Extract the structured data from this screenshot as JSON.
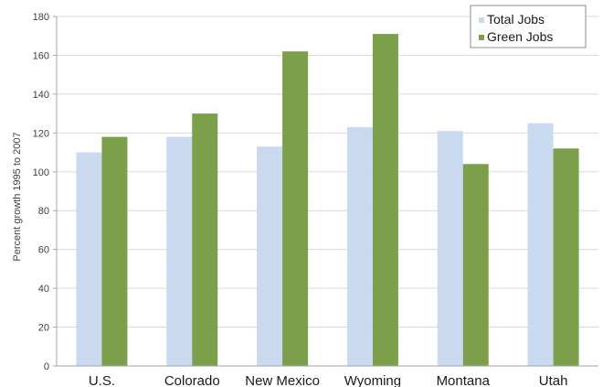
{
  "chart_data": {
    "type": "bar",
    "ylabel": "Percent growth 1995 to 2007",
    "ylim": [
      0,
      180
    ],
    "yticks": [
      0,
      20,
      40,
      60,
      80,
      100,
      120,
      140,
      160,
      180
    ],
    "grid": true,
    "legend_position": "top-right",
    "categories": [
      "U.S.",
      "Colorado",
      "New Mexico",
      "Wyoming",
      "Montana",
      "Utah"
    ],
    "series": [
      {
        "name": "Total Jobs",
        "color": "#c9daf0",
        "values": [
          110,
          118,
          113,
          123,
          121,
          125
        ]
      },
      {
        "name": "Green Jobs",
        "color": "#7c9f4b",
        "values": [
          118,
          130,
          162,
          171,
          104,
          112
        ]
      }
    ]
  }
}
